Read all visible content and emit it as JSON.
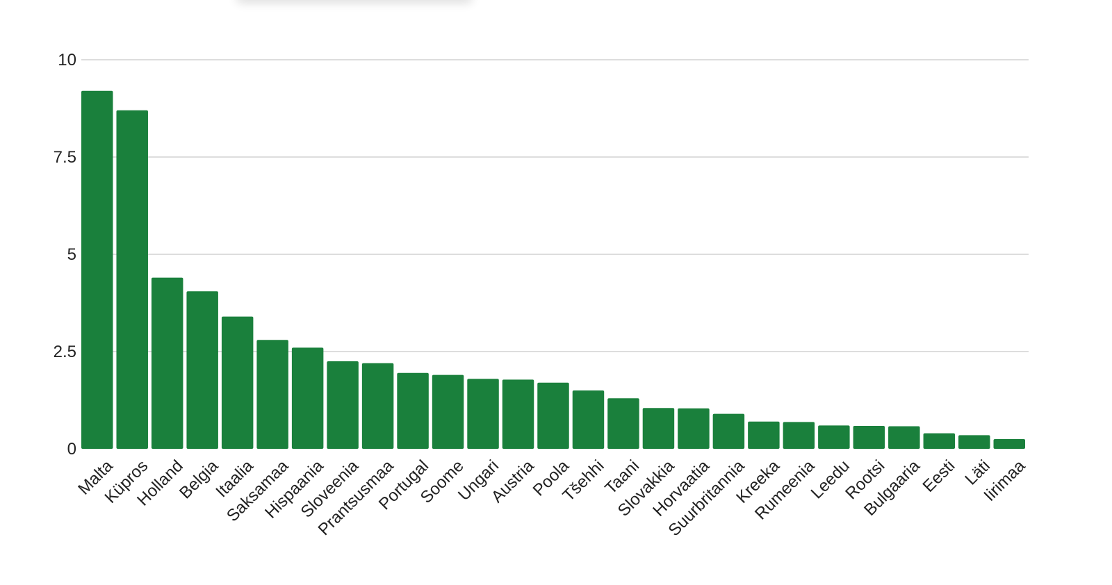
{
  "chart_data": {
    "type": "bar",
    "title": "",
    "xlabel": "",
    "ylabel": "",
    "ylim": [
      0,
      10
    ],
    "yticks": [
      0,
      2.5,
      5,
      7.5,
      10
    ],
    "ytick_labels": [
      "0",
      "2.5",
      "5",
      "7.5",
      "10"
    ],
    "grid": true,
    "legend": "none",
    "bar_color": "#1a803c",
    "grid_color": "#dddddd",
    "categories": [
      "Malta",
      "Küpros",
      "Holland",
      "Belgia",
      "Itaalia",
      "Saksamaa",
      "Hispaania",
      "Sloveenia",
      "Prantsusmaa",
      "Portugal",
      "Soome",
      "Ungari",
      "Austria",
      "Poola",
      "Tšehhi",
      "Taani",
      "Slovakkia",
      "Horvaatia",
      "Suurbritannia",
      "Kreeka",
      "Rumeenia",
      "Leedu",
      "Rootsi",
      "Bulgaaria",
      "Eesti",
      "Läti",
      "Iirimaa"
    ],
    "values": [
      9.2,
      8.7,
      4.4,
      4.05,
      3.4,
      2.8,
      2.6,
      2.25,
      2.2,
      1.95,
      1.9,
      1.8,
      1.78,
      1.7,
      1.5,
      1.3,
      1.05,
      1.04,
      0.9,
      0.7,
      0.69,
      0.6,
      0.59,
      0.58,
      0.4,
      0.35,
      0.25
    ]
  }
}
